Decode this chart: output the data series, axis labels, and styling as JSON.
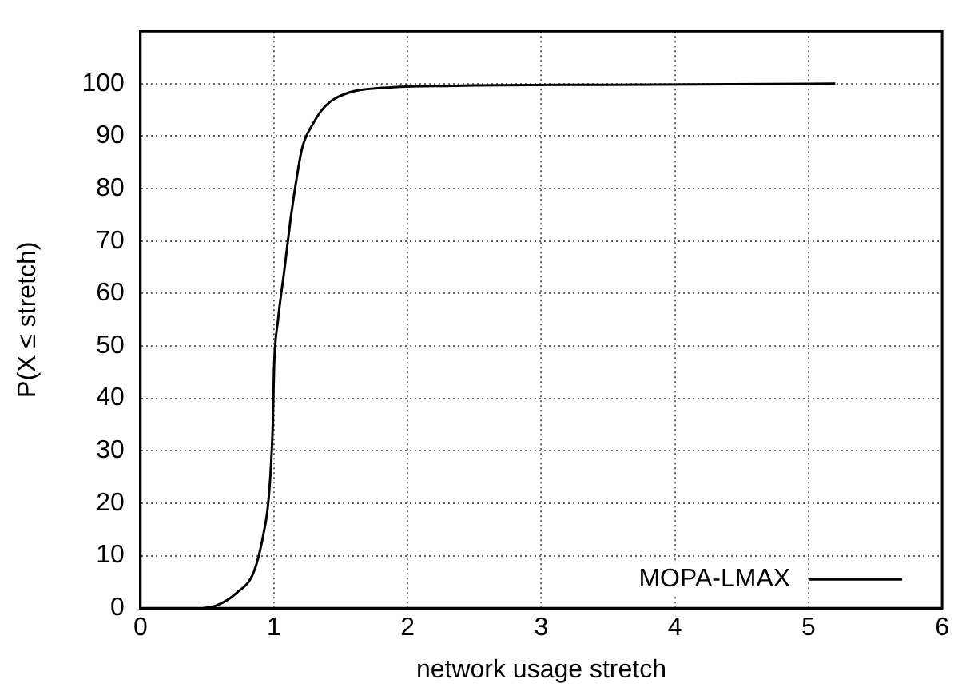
{
  "chart_data": {
    "type": "line",
    "xlabel": "network usage stretch",
    "ylabel": "P(X ≤ stretch)",
    "xlim": [
      0,
      6
    ],
    "xticks": [
      0,
      1,
      2,
      3,
      4,
      5,
      6
    ],
    "ylim": [
      0,
      110
    ],
    "yticks": [
      0,
      10,
      20,
      30,
      40,
      50,
      60,
      70,
      80,
      90,
      100
    ],
    "grid": true,
    "legend": "bottom right",
    "marker": "none",
    "line_style": "solid",
    "series": [
      {
        "name": "MOPA-LMAX",
        "color": "#000000",
        "x": [
          0.47,
          0.57,
          0.72,
          0.85,
          0.92,
          0.96,
          0.99,
          1.0,
          1.03,
          1.08,
          1.12,
          1.16,
          1.21,
          1.29,
          1.39,
          1.56,
          1.81,
          2.35,
          3.5,
          5.2
        ],
        "values": [
          0,
          0.5,
          2.9,
          7,
          14,
          21,
          34.5,
          45.8,
          55,
          65,
          73.4,
          80.5,
          87.7,
          92.3,
          95.9,
          98.3,
          99.2,
          99.6,
          99.8,
          100
        ]
      }
    ]
  }
}
